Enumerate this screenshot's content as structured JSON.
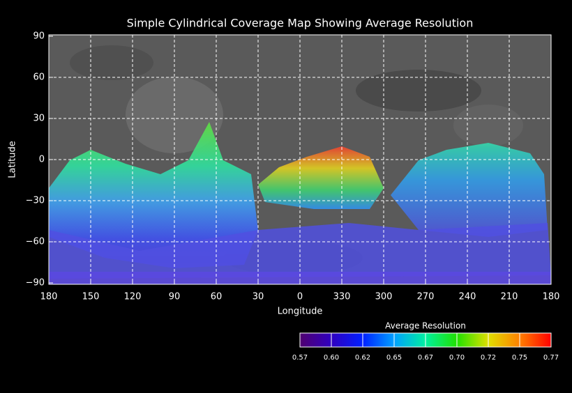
{
  "title": "Simple Cylindrical Coverage Map Showing Average Resolution",
  "x_axis": {
    "label": "Longitude",
    "ticks": [
      "180",
      "150",
      "120",
      "90",
      "60",
      "30",
      "0",
      "330",
      "300",
      "270",
      "240",
      "210",
      "180"
    ]
  },
  "y_axis": {
    "label": "Latitude",
    "ticks": [
      "90",
      "60",
      "30",
      "0",
      "−30",
      "−60",
      "−90"
    ]
  },
  "colorbar": {
    "title": "Average Resolution",
    "ticks": [
      "0.57",
      "0.60",
      "0.62",
      "0.65",
      "0.67",
      "0.70",
      "0.72",
      "0.75",
      "0.77"
    ]
  }
}
